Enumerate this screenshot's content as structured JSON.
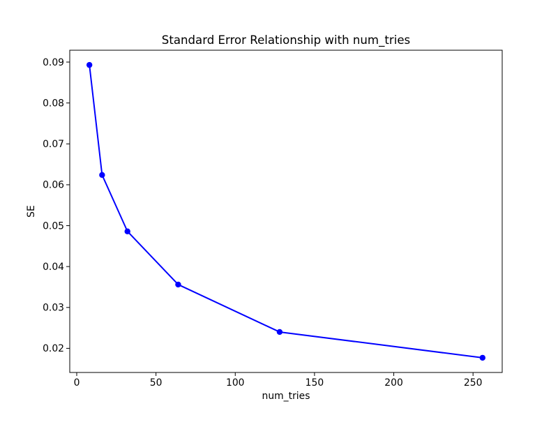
{
  "figure": {
    "background": "#ffffff",
    "border_color": "#000000"
  },
  "chart_data": {
    "type": "line",
    "title": "Standard Error Relationship with num_tries",
    "xlabel": "num_tries",
    "ylabel": "SE",
    "x": [
      8,
      16,
      32,
      64,
      128,
      256
    ],
    "y": [
      0.0893,
      0.0624,
      0.0486,
      0.0356,
      0.024,
      0.0177
    ],
    "xlim": [
      -4.4,
      268.4
    ],
    "ylim": [
      0.0141,
      0.0929
    ],
    "x_ticks": [
      0,
      50,
      100,
      150,
      200,
      250
    ],
    "x_tick_labels": [
      "0",
      "50",
      "100",
      "150",
      "200",
      "250"
    ],
    "y_ticks": [
      0.02,
      0.03,
      0.04,
      0.05,
      0.06,
      0.07,
      0.08,
      0.09
    ],
    "y_tick_labels": [
      "0.02",
      "0.03",
      "0.04",
      "0.05",
      "0.06",
      "0.07",
      "0.08",
      "0.09"
    ],
    "line_color": "#0000ff",
    "marker": "circle",
    "marker_color": "#0000ff",
    "grid": false,
    "legend": null
  }
}
